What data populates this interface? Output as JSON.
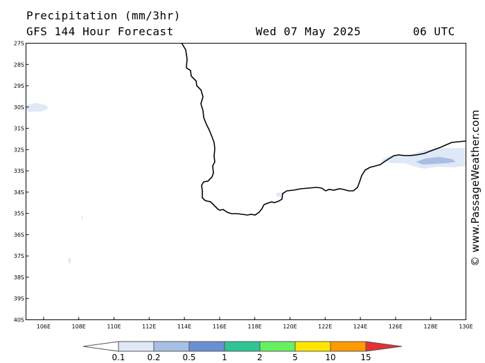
{
  "header": {
    "title": "Precipitation (mm/3hr)",
    "subtitle": "GFS 144 Hour Forecast",
    "date": "Wed 07 May 2025",
    "time": "06 UTC"
  },
  "credit": "© www.PassageWeather.com",
  "map": {
    "lat_range": [
      -40,
      -27
    ],
    "lon_range": [
      105,
      130
    ],
    "lat_labels": [
      "27S",
      "28S",
      "29S",
      "30S",
      "31S",
      "32S",
      "33S",
      "34S",
      "35S",
      "36S",
      "37S",
      "38S",
      "39S",
      "40S"
    ],
    "lon_labels": [
      "106E",
      "108E",
      "110E",
      "112E",
      "114E",
      "116E",
      "118E",
      "120E",
      "122E",
      "124E",
      "126E",
      "128E",
      "130E"
    ],
    "coastline_color": "#000000"
  },
  "legend": {
    "labels": [
      "0.1",
      "0.2",
      "0.5",
      "1",
      "2",
      "5",
      "10",
      "15"
    ],
    "colors": [
      "#ffffff",
      "#dfe8f6",
      "#a7bfe2",
      "#6b8fd2",
      "#2fc494",
      "#66f060",
      "#ffe600",
      "#ff9a00",
      "#e83030"
    ]
  },
  "precip_areas_description": [
    "light precip west of 106E near 30S",
    "light precip over Great Australian Bight 126E-130E near 33S"
  ]
}
